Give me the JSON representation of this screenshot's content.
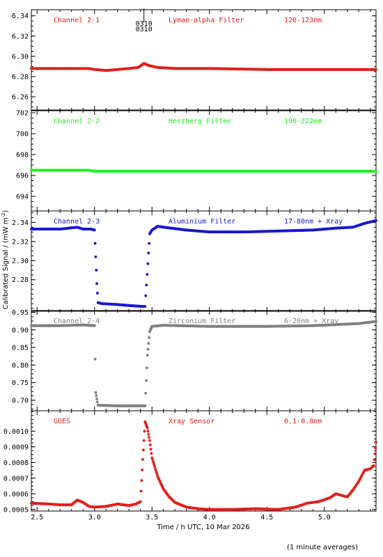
{
  "chart_data": {
    "type": "scatter",
    "xlabel": "Time / h UTC, 10 Mar 2026",
    "ylabel": "Calibrated Signal / (mW m",
    "ylabel_sup": "-2",
    "ylabel_end": ")",
    "xlim": [
      2.45,
      5.45
    ],
    "xticks": [
      2.5,
      3.0,
      3.5,
      4.0,
      4.5,
      5.0
    ],
    "xtick_labels": [
      "2.5",
      "3.0",
      "3.5",
      "4.0",
      "4.5",
      "5.0"
    ],
    "footnote": "(1 minute averages)",
    "event_marker": {
      "x": 3.43,
      "labels": [
        "0310",
        "0310"
      ]
    },
    "panels": [
      {
        "channel": "Channel 2-1",
        "filter": "Lyman-alpha Filter",
        "band": "120-123nm",
        "color": "#e0201c",
        "ylim": [
          6.247,
          6.346
        ],
        "yticks": [
          6.26,
          6.28,
          6.3,
          6.32,
          6.34
        ],
        "ytick_labels": [
          "6.26",
          "6.28",
          "6.30",
          "6.32",
          "6.34"
        ],
        "series": [
          [
            2.45,
            6.288
          ],
          [
            2.8,
            6.288
          ],
          [
            2.95,
            6.288
          ],
          [
            3.0,
            6.287
          ],
          [
            3.1,
            6.286
          ],
          [
            3.2,
            6.287
          ],
          [
            3.3,
            6.288
          ],
          [
            3.38,
            6.289
          ],
          [
            3.43,
            6.293
          ],
          [
            3.47,
            6.291
          ],
          [
            3.55,
            6.289
          ],
          [
            3.7,
            6.288
          ],
          [
            4.0,
            6.288
          ],
          [
            4.5,
            6.287
          ],
          [
            5.0,
            6.287
          ],
          [
            5.45,
            6.287
          ]
        ]
      },
      {
        "channel": "Channel 2-2",
        "filter": "Herzberg Filter",
        "band": "190-222nm",
        "color": "#22ee22",
        "ylim": [
          692.6,
          702.2
        ],
        "yticks": [
          694,
          696,
          698,
          700,
          702
        ],
        "ytick_labels": [
          "694",
          "696",
          "698",
          "700",
          "702"
        ],
        "series": [
          [
            2.45,
            696.5
          ],
          [
            2.95,
            696.5
          ],
          [
            3.0,
            696.4
          ],
          [
            3.4,
            696.4
          ],
          [
            3.5,
            696.4
          ],
          [
            4.0,
            696.4
          ],
          [
            4.5,
            696.4
          ],
          [
            5.0,
            696.4
          ],
          [
            5.45,
            696.4
          ]
        ]
      },
      {
        "channel": "Channel 2-3",
        "filter": "Aluminium Filter",
        "band": "17-80nm + Xray",
        "color": "#1818d0",
        "ylim": [
          2.247,
          2.352
        ],
        "yticks": [
          2.28,
          2.3,
          2.32,
          2.34
        ],
        "ytick_labels": [
          "2.28",
          "2.30",
          "2.32",
          "2.34"
        ],
        "series": [
          [
            2.45,
            2.333
          ],
          [
            2.7,
            2.333
          ],
          [
            2.85,
            2.335
          ],
          [
            2.9,
            2.333
          ],
          [
            2.97,
            2.333
          ],
          [
            3.0,
            2.332
          ],
          [
            3.02,
            2.276
          ],
          [
            3.03,
            2.256
          ],
          [
            3.06,
            2.255
          ],
          [
            3.2,
            2.254
          ],
          [
            3.3,
            2.253
          ],
          [
            3.42,
            2.252
          ],
          [
            3.44,
            2.252
          ],
          [
            3.47,
            2.308
          ],
          [
            3.48,
            2.328
          ],
          [
            3.5,
            2.332
          ],
          [
            3.55,
            2.336
          ],
          [
            3.6,
            2.335
          ],
          [
            3.8,
            2.332
          ],
          [
            4.0,
            2.33
          ],
          [
            4.3,
            2.33
          ],
          [
            4.6,
            2.331
          ],
          [
            4.9,
            2.332
          ],
          [
            5.1,
            2.334
          ],
          [
            5.25,
            2.335
          ],
          [
            5.35,
            2.339
          ],
          [
            5.45,
            2.342
          ]
        ]
      },
      {
        "channel": "Channel 2-4",
        "filter": "Zirconium Filter",
        "band": "6-20nm + Xray",
        "color": "#808080",
        "ylim": [
          0.67,
          0.955
        ],
        "yticks": [
          0.7,
          0.75,
          0.8,
          0.85,
          0.9,
          0.95
        ],
        "ytick_labels": [
          "0.70",
          "0.75",
          "0.80",
          "0.85",
          "0.90",
          "0.95"
        ],
        "series": [
          [
            2.45,
            0.912
          ],
          [
            2.7,
            0.912
          ],
          [
            2.9,
            0.914
          ],
          [
            3.0,
            0.912
          ],
          [
            3.01,
            0.722
          ],
          [
            3.03,
            0.686
          ],
          [
            3.2,
            0.684
          ],
          [
            3.44,
            0.684
          ],
          [
            3.46,
            0.828
          ],
          [
            3.48,
            0.895
          ],
          [
            3.5,
            0.91
          ],
          [
            3.6,
            0.913
          ],
          [
            4.0,
            0.91
          ],
          [
            4.5,
            0.91
          ],
          [
            4.9,
            0.912
          ],
          [
            5.1,
            0.915
          ],
          [
            5.3,
            0.918
          ],
          [
            5.45,
            0.924
          ]
        ]
      },
      {
        "channel": "GOES",
        "filter": "Xray Sensor",
        "band": "0.1-0.8nm",
        "color": "#e0201c",
        "ylim": [
          0.00049,
          0.00113
        ],
        "yticks": [
          0.0005,
          0.0006,
          0.0007,
          0.0008,
          0.0009,
          0.001
        ],
        "ytick_labels": [
          "0.0005",
          "0.0006",
          "0.0007",
          "0.0008",
          "0.0009",
          "0.0010"
        ],
        "series": [
          [
            2.45,
            0.00054
          ],
          [
            2.6,
            0.000535
          ],
          [
            2.7,
            0.00053
          ],
          [
            2.8,
            0.00053
          ],
          [
            2.85,
            0.00056
          ],
          [
            2.9,
            0.000545
          ],
          [
            2.95,
            0.00052
          ],
          [
            3.0,
            0.000515
          ],
          [
            3.1,
            0.00052
          ],
          [
            3.2,
            0.000535
          ],
          [
            3.3,
            0.000525
          ],
          [
            3.36,
            0.000535
          ],
          [
            3.4,
            0.00055
          ],
          [
            3.42,
            0.00082
          ],
          [
            3.44,
            0.00106
          ],
          [
            3.46,
            0.00102
          ],
          [
            3.48,
            0.00094
          ],
          [
            3.5,
            0.00083
          ],
          [
            3.55,
            0.00071
          ],
          [
            3.6,
            0.00063
          ],
          [
            3.65,
            0.00058
          ],
          [
            3.7,
            0.000545
          ],
          [
            3.8,
            0.000515
          ],
          [
            3.9,
            0.000505
          ],
          [
            4.0,
            0.0005
          ],
          [
            4.2,
            0.0005
          ],
          [
            4.4,
            0.000505
          ],
          [
            4.6,
            0.0005
          ],
          [
            4.75,
            0.000515
          ],
          [
            4.85,
            0.00054
          ],
          [
            4.95,
            0.00055
          ],
          [
            5.05,
            0.000575
          ],
          [
            5.1,
            0.0006
          ],
          [
            5.15,
            0.00059
          ],
          [
            5.2,
            0.00058
          ],
          [
            5.25,
            0.000625
          ],
          [
            5.3,
            0.00068
          ],
          [
            5.35,
            0.00075
          ],
          [
            5.4,
            0.00076
          ],
          [
            5.43,
            0.00078
          ],
          [
            5.45,
            0.00093
          ]
        ]
      }
    ]
  }
}
